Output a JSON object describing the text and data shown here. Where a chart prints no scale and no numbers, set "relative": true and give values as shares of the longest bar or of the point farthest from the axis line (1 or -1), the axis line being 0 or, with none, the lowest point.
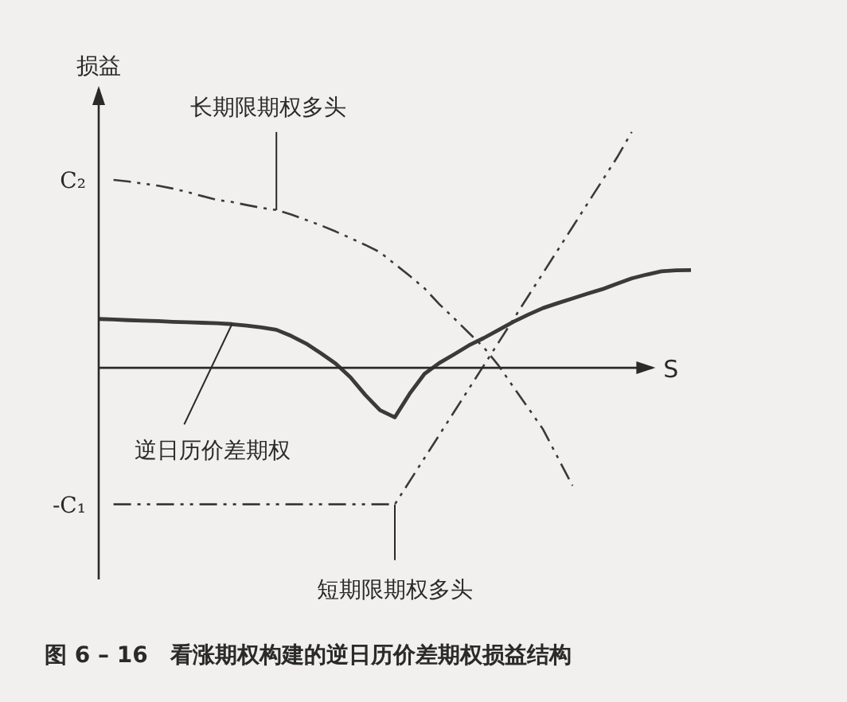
{
  "chart_data": {
    "type": "line",
    "title": "图 6 – 16　看涨期权构建的逆日历价差期权损益结构",
    "xlabel": "S",
    "ylabel": "损益",
    "relative": true,
    "tick_labels": false,
    "grid": false,
    "legend": false,
    "marker": "none",
    "categories": [
      null,
      null,
      null,
      null,
      null,
      null,
      null,
      null,
      null,
      null,
      null,
      null,
      null,
      null,
      null,
      null,
      null,
      null,
      null,
      null,
      null,
      null,
      null,
      null,
      null,
      null,
      null,
      null,
      null,
      null,
      null,
      null,
      null,
      null,
      null,
      null,
      null,
      null,
      null,
      null,
      null
    ],
    "series": [
      {
        "name": "长期限期权多头",
        "color": "#3a3a3a",
        "line_style": "dashed",
        "values": [
          null,
          0.797,
          0.79,
          0.781,
          0.772,
          0.76,
          0.745,
          0.728,
          0.712,
          0.703,
          0.69,
          0.678,
          0.669,
          0.65,
          0.627,
          0.604,
          0.578,
          0.55,
          0.521,
          0.49,
          0.44,
          0.39,
          0.337,
          0.27,
          0.21,
          0.148,
          0.087,
          0.01,
          -0.081,
          -0.17,
          -0.26,
          -0.38,
          -0.5,
          null,
          null,
          null,
          null,
          null,
          null,
          null,
          null
        ]
      },
      {
        "name": "逆日历价差期权",
        "color": "#3a3a3a",
        "line_style": "solid",
        "values": [
          0.207,
          0.205,
          0.202,
          0.2,
          0.198,
          0.195,
          0.193,
          0.191,
          0.189,
          0.185,
          0.179,
          0.171,
          0.161,
          0.135,
          0.103,
          0.062,
          0.018,
          -0.04,
          -0.115,
          -0.18,
          -0.21,
          -0.11,
          -0.026,
          0.02,
          0.057,
          0.095,
          0.126,
          0.16,
          0.195,
          0.225,
          0.253,
          0.274,
          0.294,
          0.314,
          0.333,
          0.356,
          0.379,
          0.395,
          0.409,
          0.413,
          0.414
        ]
      },
      {
        "name": "短期限期权多头",
        "color": "#3a3a3a",
        "line_style": "dashed",
        "values": [
          null,
          -0.579,
          -0.579,
          -0.579,
          -0.579,
          -0.579,
          -0.579,
          -0.579,
          -0.579,
          -0.579,
          -0.579,
          -0.579,
          -0.579,
          -0.579,
          -0.579,
          -0.579,
          -0.579,
          -0.579,
          -0.579,
          -0.579,
          -0.579,
          -0.481,
          -0.383,
          -0.285,
          -0.187,
          -0.089,
          0.009,
          0.107,
          0.205,
          0.303,
          0.401,
          0.499,
          0.597,
          0.695,
          0.793,
          0.891,
          1.0,
          null,
          null,
          null,
          null
        ]
      }
    ],
    "annotations": [
      "C₂",
      "-C₁"
    ]
  }
}
